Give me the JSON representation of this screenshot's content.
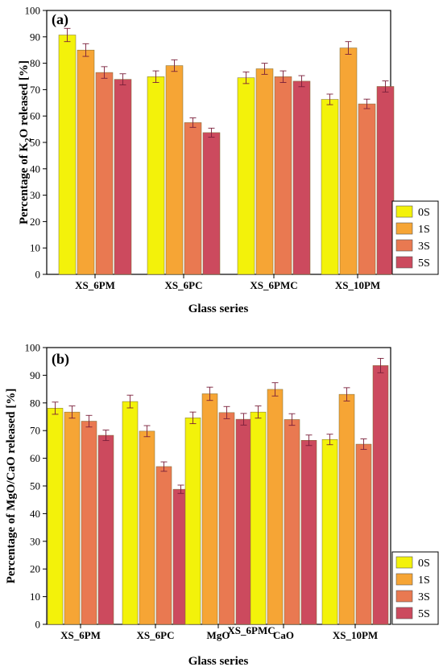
{
  "figure": {
    "colors": {
      "0S": "#f3f20a",
      "1S": "#f6a535",
      "3S": "#e97951",
      "5S": "#cc4a5e",
      "errorbar": "#7a1f3a"
    }
  },
  "chart_data": [
    {
      "type": "bar",
      "panel_label": "(a)",
      "title": "",
      "xlabel": "Glass series",
      "ylabel": "Percentage of K2O released [%]",
      "ylabel_parts": {
        "pre": "Percentage of K",
        "sub": "2",
        "post": "O released [%]"
      },
      "ylim": [
        0,
        100
      ],
      "yticks": [
        0,
        10,
        20,
        30,
        40,
        50,
        60,
        70,
        80,
        90,
        100
      ],
      "categories": [
        "XS_6PM",
        "XS_6PC",
        "XS_6PMC",
        "XS_10PM"
      ],
      "series": [
        {
          "name": "0S",
          "values": [
            90.7,
            74.9,
            74.5,
            66.3
          ],
          "errors": [
            2.5,
            2.2,
            2.2,
            2.0
          ]
        },
        {
          "name": "1S",
          "values": [
            85.0,
            79.1,
            77.9,
            85.8
          ],
          "errors": [
            2.4,
            2.2,
            2.1,
            2.4
          ]
        },
        {
          "name": "3S",
          "values": [
            76.5,
            57.5,
            74.9,
            64.6
          ],
          "errors": [
            2.2,
            1.8,
            2.2,
            1.8
          ]
        },
        {
          "name": "5S",
          "values": [
            73.9,
            53.7,
            73.2,
            71.2
          ],
          "errors": [
            2.1,
            1.7,
            2.1,
            2.1
          ]
        }
      ],
      "legend": {
        "entries": [
          "0S",
          "1S",
          "3S",
          "5S"
        ],
        "placement": "right"
      },
      "grid": false
    },
    {
      "type": "bar",
      "panel_label": "(b)",
      "title": "",
      "xlabel": "Glass series",
      "ylabel": "Percentage of MgO/CaO released [%]",
      "ylim": [
        0,
        100
      ],
      "yticks": [
        0,
        10,
        20,
        30,
        40,
        50,
        60,
        70,
        80,
        90,
        100
      ],
      "categories": [
        "XS_6PM",
        "XS_6PC",
        "MgO",
        "CaO",
        "XS_10PM"
      ],
      "group_label": {
        "text": "XS_6PMC",
        "spans": [
          "MgO",
          "CaO"
        ]
      },
      "series": [
        {
          "name": "0S",
          "values": [
            78.1,
            80.5,
            74.6,
            76.7,
            66.8
          ],
          "errors": [
            2.2,
            2.3,
            2.1,
            2.2,
            1.9
          ]
        },
        {
          "name": "1S",
          "values": [
            76.7,
            69.8,
            83.3,
            84.9,
            83.1
          ],
          "errors": [
            2.2,
            2.0,
            2.4,
            2.4,
            2.4
          ]
        },
        {
          "name": "3S",
          "values": [
            73.4,
            57.0,
            76.5,
            74.0,
            65.1
          ],
          "errors": [
            2.1,
            1.7,
            2.2,
            2.1,
            1.9
          ]
        },
        {
          "name": "5S",
          "values": [
            68.3,
            48.8,
            74.1,
            66.5,
            93.5
          ],
          "errors": [
            1.9,
            1.5,
            2.1,
            1.9,
            2.6
          ]
        }
      ],
      "legend": {
        "entries": [
          "0S",
          "1S",
          "3S",
          "5S"
        ],
        "placement": "right"
      },
      "grid": false
    }
  ]
}
